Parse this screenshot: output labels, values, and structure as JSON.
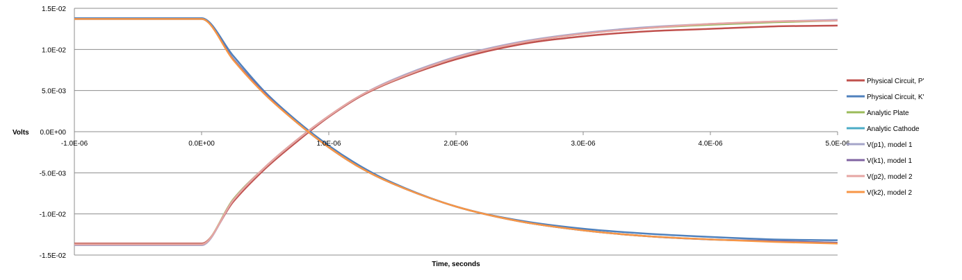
{
  "chart_data": {
    "type": "line",
    "title": "",
    "xlabel": "Time, seconds",
    "ylabel": "Volts",
    "xlim": [
      -1e-06,
      5e-06
    ],
    "ylim": [
      -0.015,
      0.015
    ],
    "x_ticks": [
      -1e-06,
      0,
      1e-06,
      2e-06,
      3e-06,
      4e-06,
      5e-06
    ],
    "x_tick_labels": [
      "-1.0E-06",
      "0.0E+00",
      "1.0E-06",
      "2.0E-06",
      "3.0E-06",
      "4.0E-06",
      "5.0E-06"
    ],
    "y_ticks": [
      0.015,
      0.01,
      0.005,
      0,
      -0.005,
      -0.01,
      -0.015
    ],
    "y_tick_labels": [
      "1.5E-02",
      "1.0E-02",
      "5.0E-03",
      "0.0E+00",
      "-5.0E-03",
      "-1.0E-02",
      "-1.5E-02"
    ],
    "grid": "horizontal",
    "legend_position": "right",
    "x": [
      -1e-06,
      -5e-07,
      0.0,
      2.5e-07,
      5e-07,
      7.5e-07,
      1e-06,
      1.25e-06,
      1.5e-06,
      2e-06,
      2.5e-06,
      3e-06,
      3.5e-06,
      4e-06,
      4.5e-06,
      5e-06
    ],
    "series": [
      {
        "name": "Physical Circuit, P'",
        "color": "#c0504d",
        "values": [
          -0.0136,
          -0.0136,
          -0.0136,
          -0.0085,
          -0.0045,
          -0.0012,
          0.0018,
          0.0043,
          0.0061,
          0.0088,
          0.0106,
          0.0116,
          0.0122,
          0.0125,
          0.0128,
          0.0129
        ]
      },
      {
        "name": "Physical Circuit, K'",
        "color": "#4f81bd",
        "values": [
          0.0138,
          0.0138,
          0.0138,
          0.0092,
          0.0048,
          0.0013,
          -0.0017,
          -0.0042,
          -0.0062,
          -0.0091,
          -0.0108,
          -0.0118,
          -0.0124,
          -0.0128,
          -0.0131,
          -0.0132
        ]
      },
      {
        "name": "Analytic Plate",
        "color": "#9bbb59",
        "values": [
          -0.0137,
          -0.0137,
          -0.0137,
          -0.0082,
          -0.0043,
          -0.001,
          0.0019,
          0.0044,
          0.0062,
          0.009,
          0.0108,
          0.0119,
          0.0126,
          0.013,
          0.0133,
          0.0135
        ]
      },
      {
        "name": "Analytic Cathode",
        "color": "#4bacc6",
        "values": [
          0.0137,
          0.0137,
          0.0137,
          0.0088,
          0.0046,
          0.0011,
          -0.0019,
          -0.0044,
          -0.0063,
          -0.0091,
          -0.0109,
          -0.012,
          -0.0127,
          -0.0131,
          -0.0133,
          -0.0135
        ]
      },
      {
        "name": "V(p1), model 1",
        "color": "#a5a5c9",
        "values": [
          -0.0138,
          -0.0138,
          -0.0138,
          -0.0083,
          -0.0043,
          -0.001,
          0.0019,
          0.0044,
          0.0063,
          0.0091,
          0.0109,
          0.012,
          0.0127,
          0.0131,
          0.0134,
          0.0136
        ]
      },
      {
        "name": "V(k1), model 1",
        "color": "#8064a2",
        "values": [
          0.0137,
          0.0137,
          0.0137,
          0.0088,
          0.0046,
          0.0011,
          -0.0019,
          -0.0044,
          -0.0063,
          -0.0091,
          -0.0109,
          -0.012,
          -0.0127,
          -0.0131,
          -0.0133,
          -0.0135
        ]
      },
      {
        "name": "V(p2), model 2",
        "color": "#e6a5a3",
        "values": [
          -0.0137,
          -0.0137,
          -0.0137,
          -0.0083,
          -0.0043,
          -0.001,
          0.0019,
          0.0044,
          0.0062,
          0.009,
          0.0108,
          0.0119,
          0.0126,
          0.0131,
          0.0134,
          0.0135
        ]
      },
      {
        "name": "V(k2), model 2",
        "color": "#f79646",
        "values": [
          0.0137,
          0.0137,
          0.0137,
          0.0087,
          0.0045,
          0.0011,
          -0.0019,
          -0.0044,
          -0.0063,
          -0.0091,
          -0.0109,
          -0.012,
          -0.0127,
          -0.0131,
          -0.0134,
          -0.0136
        ]
      }
    ]
  }
}
